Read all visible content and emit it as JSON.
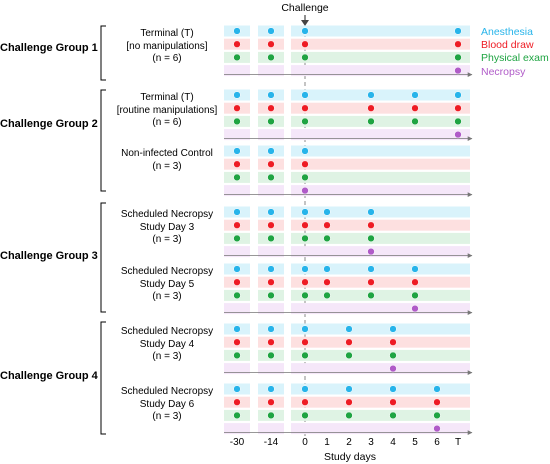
{
  "challenge_label": "Challenge",
  "x_axis_title": "Study days",
  "x_ticks": [
    {
      "day": -30,
      "label": "-30"
    },
    {
      "day": -14,
      "label": "-14"
    },
    {
      "day": 0,
      "label": "0"
    },
    {
      "day": 1,
      "label": "1"
    },
    {
      "day": 2,
      "label": "2"
    },
    {
      "day": 3,
      "label": "3"
    },
    {
      "day": 4,
      "label": "4"
    },
    {
      "day": 5,
      "label": "5"
    },
    {
      "day": 6,
      "label": "6"
    },
    {
      "day": "T",
      "label": "T"
    }
  ],
  "legend": [
    {
      "key": "anesthesia",
      "label": "Anesthesia",
      "color": "#27b4ea"
    },
    {
      "key": "blood",
      "label": "Blood draw",
      "color": "#ee1c24"
    },
    {
      "key": "physical",
      "label": "Physical exam",
      "color": "#1fa442"
    },
    {
      "key": "necropsy",
      "label": "Necropsy",
      "color": "#b05bc8"
    }
  ],
  "band_colors": {
    "anesthesia": "#d9f3fb",
    "blood": "#fde0e0",
    "physical": "#dff3e4",
    "necropsy": "#f5e7f9"
  },
  "groups": [
    {
      "name": "Challenge Group 1",
      "subgroups": [
        {
          "label_lines": [
            "Terminal (T)",
            "[no manipulations]",
            "(n = 6)"
          ],
          "events": {
            "anesthesia": [
              -30,
              -14,
              0,
              "T"
            ],
            "blood": [
              -30,
              -14,
              0,
              "T"
            ],
            "physical": [
              -30,
              -14,
              0,
              "T"
            ],
            "necropsy": [
              "T"
            ]
          }
        }
      ]
    },
    {
      "name": "Challenge Group 2",
      "subgroups": [
        {
          "label_lines": [
            "Terminal (T)",
            "[routine manipulations]",
            "(n = 6)"
          ],
          "events": {
            "anesthesia": [
              -30,
              -14,
              0,
              3,
              5,
              "T"
            ],
            "blood": [
              -30,
              -14,
              0,
              3,
              5,
              "T"
            ],
            "physical": [
              -30,
              -14,
              0,
              3,
              5,
              "T"
            ],
            "necropsy": [
              "T"
            ]
          }
        },
        {
          "label_lines": [
            "Non-infected Control",
            "(n = 3)"
          ],
          "events": {
            "anesthesia": [
              -30,
              -14,
              0
            ],
            "blood": [
              -30,
              -14,
              0
            ],
            "physical": [
              -30,
              -14,
              0
            ],
            "necropsy": [
              0
            ]
          }
        }
      ]
    },
    {
      "name": "Challenge Group 3",
      "subgroups": [
        {
          "label_lines": [
            "Scheduled Necropsy",
            "Study Day 3",
            "(n = 3)"
          ],
          "events": {
            "anesthesia": [
              -30,
              -14,
              0,
              1,
              3
            ],
            "blood": [
              -30,
              -14,
              0,
              1,
              3
            ],
            "physical": [
              -30,
              -14,
              0,
              1,
              3
            ],
            "necropsy": [
              3
            ]
          }
        },
        {
          "label_lines": [
            "Scheduled Necropsy",
            "Study Day 5",
            "(n = 3)"
          ],
          "events": {
            "anesthesia": [
              -30,
              -14,
              0,
              1,
              3,
              5
            ],
            "blood": [
              -30,
              -14,
              0,
              1,
              3,
              5
            ],
            "physical": [
              -30,
              -14,
              0,
              1,
              3,
              5
            ],
            "necropsy": [
              5
            ]
          }
        }
      ]
    },
    {
      "name": "Challenge Group 4",
      "subgroups": [
        {
          "label_lines": [
            "Scheduled Necropsy",
            "Study Day 4",
            "(n = 3)"
          ],
          "events": {
            "anesthesia": [
              -30,
              -14,
              0,
              2,
              4
            ],
            "blood": [
              -30,
              -14,
              0,
              2,
              4
            ],
            "physical": [
              -30,
              -14,
              0,
              2,
              4
            ],
            "necropsy": [
              4
            ]
          }
        },
        {
          "label_lines": [
            "Scheduled Necropsy",
            "Study Day 6",
            "(n = 3)"
          ],
          "events": {
            "anesthesia": [
              -30,
              -14,
              0,
              2,
              4,
              6
            ],
            "blood": [
              -30,
              -14,
              0,
              2,
              4,
              6
            ],
            "physical": [
              -30,
              -14,
              0,
              2,
              4,
              6
            ],
            "necropsy": [
              6
            ]
          }
        }
      ]
    }
  ]
}
